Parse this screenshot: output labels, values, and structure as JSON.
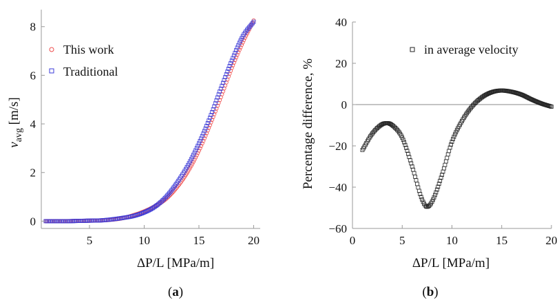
{
  "chart_data": [
    {
      "id": "a",
      "type": "scatter",
      "caption_open": "(",
      "caption_letter": "a",
      "caption_close": ")",
      "xlabel": "ΔP/L [MPa/m]",
      "ylabel_main": "v",
      "ylabel_sub": "avg",
      "ylabel_unit": " [m/s]",
      "xlim": [
        0.6,
        20.6
      ],
      "ylim": [
        -0.3,
        8.7
      ],
      "xticks": [
        5,
        10,
        15,
        20
      ],
      "yticks": [
        0,
        2,
        4,
        6,
        8
      ],
      "frame": "left-bottom",
      "legend_position": "top-left",
      "series": [
        {
          "name": "This work",
          "marker": "circle",
          "color": "#ee4b4b",
          "x": [
            1,
            2,
            3,
            4,
            5,
            6,
            7,
            8,
            9,
            10,
            11,
            12,
            13,
            14,
            15,
            16,
            17,
            18,
            19,
            20
          ],
          "y": [
            0.0,
            0.0,
            0.0,
            0.01,
            0.02,
            0.03,
            0.06,
            0.12,
            0.24,
            0.4,
            0.62,
            0.92,
            1.4,
            2.05,
            2.9,
            3.95,
            5.1,
            6.3,
            7.35,
            8.25
          ]
        },
        {
          "name": "Traditional",
          "marker": "square",
          "color": "#3b3bd8",
          "x": [
            1,
            2,
            3,
            4,
            5,
            6,
            7,
            8,
            9,
            10,
            11,
            12,
            13,
            14,
            15,
            16,
            17,
            18,
            19,
            20
          ],
          "y": [
            0.0,
            0.0,
            0.0,
            0.01,
            0.02,
            0.03,
            0.07,
            0.13,
            0.21,
            0.36,
            0.6,
            1.0,
            1.58,
            2.3,
            3.2,
            4.25,
            5.45,
            6.6,
            7.6,
            8.2
          ]
        }
      ]
    },
    {
      "id": "b",
      "type": "scatter",
      "caption_open": "(",
      "caption_letter": "b",
      "caption_close": ")",
      "xlabel": "ΔP/L [MPa/m]",
      "ylabel": "Percentage difference, %",
      "xlim": [
        0,
        20
      ],
      "ylim": [
        -60,
        40
      ],
      "xticks": [
        0,
        5,
        10,
        15,
        20
      ],
      "yticks": [
        -60,
        -40,
        -20,
        0,
        20,
        40
      ],
      "frame": "left-bottom",
      "zero_line": true,
      "legend_position": "top-right",
      "series": [
        {
          "name": "in average velocity",
          "marker": "square",
          "color": "#222222",
          "x": [
            1,
            2,
            3,
            3.5,
            4,
            5,
            6,
            7,
            7.5,
            8,
            9,
            10,
            11,
            12,
            13,
            14,
            15,
            16,
            17,
            18,
            19,
            20
          ],
          "y": [
            -22,
            -14,
            -9.5,
            -9,
            -10,
            -16,
            -30,
            -46,
            -49.5,
            -47,
            -34,
            -18,
            -8,
            -1,
            3.5,
            6,
            6.8,
            6.2,
            4.8,
            2.5,
            0.5,
            -1
          ]
        }
      ]
    }
  ]
}
